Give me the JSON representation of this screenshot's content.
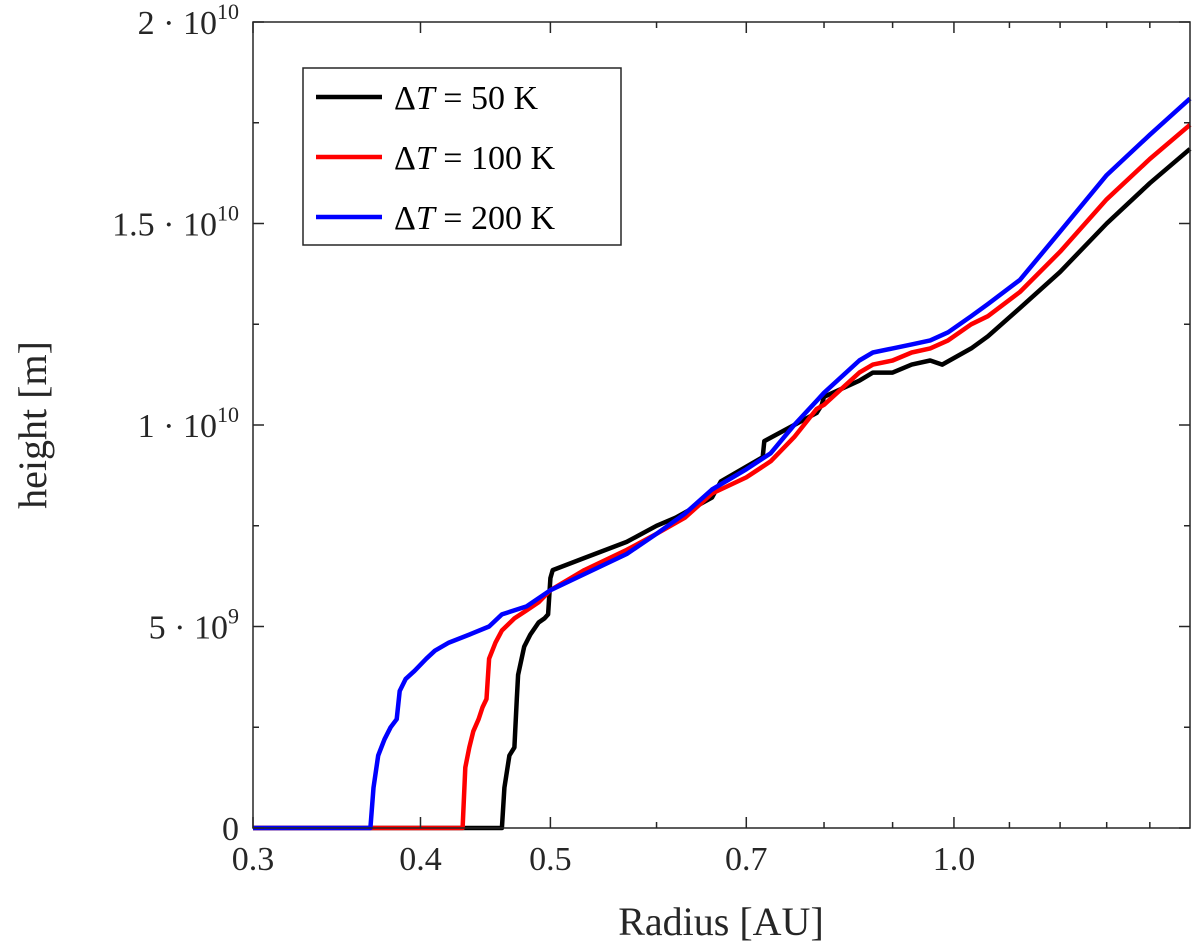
{
  "chart_data": {
    "type": "line",
    "xlabel": "Radius [AU]",
    "ylabel": "height [m]",
    "xscale": "log",
    "xlim": [
      0.3,
      1.5
    ],
    "ylim": [
      0,
      20000000000
    ],
    "x_ticks": [
      {
        "value": 0.3,
        "label": "0.3"
      },
      {
        "value": 0.4,
        "label": "0.4"
      },
      {
        "value": 0.5,
        "label": "0.5"
      },
      {
        "value": 0.7,
        "label": "0.7"
      },
      {
        "value": 1.0,
        "label": "1.0"
      }
    ],
    "x_minor_ticks": [
      0.6,
      0.8,
      0.9,
      1.1,
      1.2,
      1.3,
      1.4
    ],
    "y_ticks": [
      {
        "value": 0,
        "label_main": "0",
        "label_exp": ""
      },
      {
        "value": 5000000000,
        "label_main": "5 · 10",
        "label_exp": "9"
      },
      {
        "value": 10000000000,
        "label_main": "1 · 10",
        "label_exp": "10"
      },
      {
        "value": 15000000000,
        "label_main": "1.5 · 10",
        "label_exp": "10"
      },
      {
        "value": 20000000000,
        "label_main": "2 · 10",
        "label_exp": "10"
      }
    ],
    "y_minor_ticks": [
      2500000000,
      7500000000,
      12500000000,
      17500000000
    ],
    "legend_position": "top-left",
    "series": [
      {
        "name": "ΔT = 50 K",
        "legend_prefix": "Δ",
        "legend_var": "T",
        "legend_suffix": " = 50 K",
        "color": "#000000",
        "points": [
          [
            0.3,
            0
          ],
          [
            0.46,
            0
          ],
          [
            0.462,
            1000000000.0
          ],
          [
            0.466,
            1800000000.0
          ],
          [
            0.47,
            2000000000.0
          ],
          [
            0.472,
            3200000000.0
          ],
          [
            0.473,
            3800000000.0
          ],
          [
            0.478,
            4500000000.0
          ],
          [
            0.483,
            4800000000.0
          ],
          [
            0.49,
            5100000000.0
          ],
          [
            0.495,
            5200000000.0
          ],
          [
            0.498,
            5300000000.0
          ],
          [
            0.5,
            6200000000.0
          ],
          [
            0.502,
            6400000000.0
          ],
          [
            0.53,
            6700000000.0
          ],
          [
            0.57,
            7100000000.0
          ],
          [
            0.6,
            7500000000.0
          ],
          [
            0.62,
            7700000000.0
          ],
          [
            0.66,
            8200000000.0
          ],
          [
            0.67,
            8600000000.0
          ],
          [
            0.72,
            9200000000.0
          ],
          [
            0.722,
            9600000000.0
          ],
          [
            0.76,
            10000000000.0
          ],
          [
            0.79,
            10300000000.0
          ],
          [
            0.797,
            10500000000.0
          ],
          [
            0.8,
            10700000000.0
          ],
          [
            0.85,
            11100000000.0
          ],
          [
            0.87,
            11300000000.0
          ],
          [
            0.9,
            11300000000.0
          ],
          [
            0.93,
            11500000000.0
          ],
          [
            0.96,
            11600000000.0
          ],
          [
            0.98,
            11500000000.0
          ],
          [
            1.03,
            11900000000.0
          ],
          [
            1.06,
            12200000000.0
          ],
          [
            1.12,
            12900000000.0
          ],
          [
            1.2,
            13800000000.0
          ],
          [
            1.3,
            15000000000.0
          ],
          [
            1.4,
            16000000000.0
          ],
          [
            1.5,
            16850000000.0
          ]
        ]
      },
      {
        "name": "ΔT = 100 K",
        "legend_prefix": "Δ",
        "legend_var": "T",
        "legend_suffix": " = 100 K",
        "color": "#ff0000",
        "points": [
          [
            0.3,
            0
          ],
          [
            0.43,
            0
          ],
          [
            0.432,
            1500000000.0
          ],
          [
            0.435,
            2000000000.0
          ],
          [
            0.438,
            2400000000.0
          ],
          [
            0.442,
            2700000000.0
          ],
          [
            0.445,
            3000000000.0
          ],
          [
            0.448,
            3200000000.0
          ],
          [
            0.45,
            4200000000.0
          ],
          [
            0.455,
            4600000000.0
          ],
          [
            0.46,
            4900000000.0
          ],
          [
            0.47,
            5200000000.0
          ],
          [
            0.48,
            5400000000.0
          ],
          [
            0.49,
            5600000000.0
          ],
          [
            0.5,
            5900000000.0
          ],
          [
            0.53,
            6400000000.0
          ],
          [
            0.57,
            6900000000.0
          ],
          [
            0.6,
            7300000000.0
          ],
          [
            0.63,
            7700000000.0
          ],
          [
            0.66,
            8300000000.0
          ],
          [
            0.7,
            8700000000.0
          ],
          [
            0.73,
            9100000000.0
          ],
          [
            0.76,
            9700000000.0
          ],
          [
            0.79,
            10400000000.0
          ],
          [
            0.8,
            10500000000.0
          ],
          [
            0.85,
            11300000000.0
          ],
          [
            0.87,
            11500000000.0
          ],
          [
            0.9,
            11600000000.0
          ],
          [
            0.93,
            11800000000.0
          ],
          [
            0.96,
            11900000000.0
          ],
          [
            0.99,
            12100000000.0
          ],
          [
            1.03,
            12500000000.0
          ],
          [
            1.06,
            12700000000.0
          ],
          [
            1.12,
            13300000000.0
          ],
          [
            1.2,
            14300000000.0
          ],
          [
            1.3,
            15600000000.0
          ],
          [
            1.4,
            16600000000.0
          ],
          [
            1.5,
            17450000000.0
          ]
        ]
      },
      {
        "name": "ΔT = 200 K",
        "legend_prefix": "Δ",
        "legend_var": "T",
        "legend_suffix": " = 200 K",
        "color": "#0000ff",
        "points": [
          [
            0.3,
            0
          ],
          [
            0.367,
            0
          ],
          [
            0.369,
            1000000000.0
          ],
          [
            0.372,
            1800000000.0
          ],
          [
            0.376,
            2200000000.0
          ],
          [
            0.38,
            2500000000.0
          ],
          [
            0.384,
            2700000000.0
          ],
          [
            0.386,
            3400000000.0
          ],
          [
            0.39,
            3700000000.0
          ],
          [
            0.396,
            3900000000.0
          ],
          [
            0.404,
            4200000000.0
          ],
          [
            0.41,
            4400000000.0
          ],
          [
            0.42,
            4600000000.0
          ],
          [
            0.435,
            4800000000.0
          ],
          [
            0.45,
            5000000000.0
          ],
          [
            0.46,
            5300000000.0
          ],
          [
            0.48,
            5500000000.0
          ],
          [
            0.5,
            5900000000.0
          ],
          [
            0.53,
            6300000000.0
          ],
          [
            0.57,
            6800000000.0
          ],
          [
            0.6,
            7300000000.0
          ],
          [
            0.63,
            7800000000.0
          ],
          [
            0.66,
            8400000000.0
          ],
          [
            0.7,
            8900000000.0
          ],
          [
            0.73,
            9300000000.0
          ],
          [
            0.76,
            10000000000.0
          ],
          [
            0.79,
            10600000000.0
          ],
          [
            0.8,
            10800000000.0
          ],
          [
            0.85,
            11600000000.0
          ],
          [
            0.87,
            11800000000.0
          ],
          [
            0.9,
            11900000000.0
          ],
          [
            0.93,
            12000000000.0
          ],
          [
            0.96,
            12100000000.0
          ],
          [
            0.99,
            12300000000.0
          ],
          [
            1.03,
            12700000000.0
          ],
          [
            1.06,
            13000000000.0
          ],
          [
            1.12,
            13600000000.0
          ],
          [
            1.2,
            14800000000.0
          ],
          [
            1.3,
            16200000000.0
          ],
          [
            1.4,
            17200000000.0
          ],
          [
            1.5,
            18100000000.0
          ]
        ]
      }
    ]
  }
}
